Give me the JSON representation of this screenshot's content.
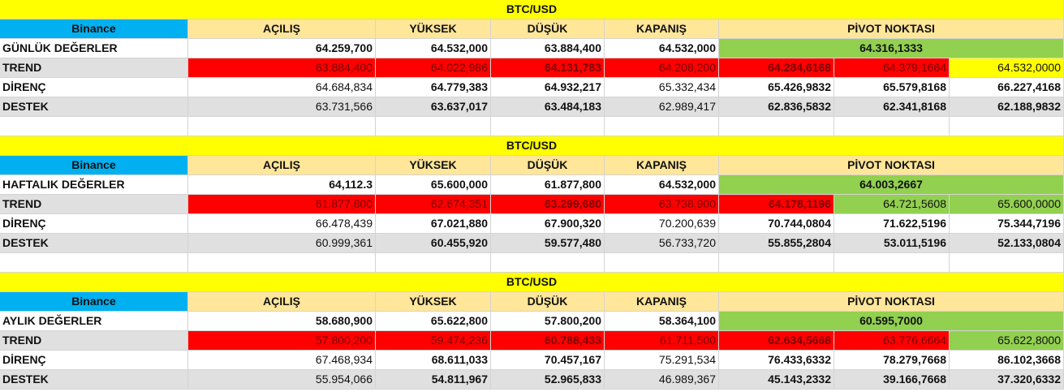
{
  "blocks": [
    {
      "title": "BTC/USD",
      "header": {
        "source": "Binance",
        "columns": [
          "AÇILIŞ",
          "YÜKSEK",
          "DÜŞÜK",
          "KAPANIŞ"
        ],
        "pivot": "PİVOT NOKTASI"
      },
      "summary": {
        "label": "GÜNLÜK DEĞERLER",
        "cells": [
          "64.259,700",
          "64.532,000",
          "63.884,400",
          "64.532,000"
        ],
        "pivot": "64.316,1333"
      },
      "trend": {
        "label": "TREND",
        "cells": [
          "63.884,400",
          "64.022,986",
          "64.131,783",
          "64.208,200",
          "64.284,6168",
          "64.379,1664",
          "64.532,0000"
        ],
        "fills": [
          "#ff0000",
          "#ff0000",
          "#ff0000",
          "#ff0000",
          "#ff0000",
          "#ff0000",
          "#ffff00"
        ]
      },
      "resistance": {
        "label": "DİRENÇ",
        "cells": [
          "64.684,834",
          "64.779,383",
          "64.932,217",
          "65.332,434",
          "65.426,9832",
          "65.579,8168",
          "66.227,4168"
        ]
      },
      "support": {
        "label": "DESTEK",
        "cells": [
          "63.731,566",
          "63.637,017",
          "63.484,183",
          "62.989,417",
          "62.836,5832",
          "62.341,8168",
          "62.188,9832"
        ]
      }
    },
    {
      "title": "BTC/USD",
      "header": {
        "source": "Binance",
        "columns": [
          "AÇILIŞ",
          "YÜKSEK",
          "DÜŞÜK",
          "KAPANIŞ"
        ],
        "pivot": "PİVOT NOKTASI"
      },
      "summary": {
        "label": "HAFTALIK DEĞERLER",
        "cells": [
          "64,112.3",
          "65.600,000",
          "61.877,800",
          "64.532,000"
        ],
        "pivot": "64.003,2667"
      },
      "trend": {
        "label": "TREND",
        "cells": [
          "61.877,800",
          "62.674,351",
          "63.299,680",
          "63.738,900",
          "64.178,1196",
          "64.721,5608",
          "65.600,0000"
        ],
        "fills": [
          "#ff0000",
          "#ff0000",
          "#ff0000",
          "#ff0000",
          "#ff0000",
          "#92d050",
          "#92d050"
        ]
      },
      "resistance": {
        "label": "DİRENÇ",
        "cells": [
          "66.478,439",
          "67.021,880",
          "67.900,320",
          "70.200,639",
          "70.744,0804",
          "71.622,5196",
          "75.344,7196"
        ]
      },
      "support": {
        "label": "DESTEK",
        "cells": [
          "60.999,361",
          "60.455,920",
          "59.577,480",
          "56.733,720",
          "55.855,2804",
          "53.011,5196",
          "52.133,0804"
        ]
      }
    },
    {
      "title": "BTC/USD",
      "header": {
        "source": "Binance",
        "columns": [
          "AÇILIŞ",
          "YÜKSEK",
          "DÜŞÜK",
          "KAPANIŞ"
        ],
        "pivot": "PİVOT NOKTASI"
      },
      "summary": {
        "label": "AYLIK DEĞERLER",
        "cells": [
          "58.680,900",
          "65.622,800",
          "57.800,200",
          "58.364,100"
        ],
        "pivot": "60.595,7000"
      },
      "trend": {
        "label": "TREND",
        "cells": [
          "57.800,200",
          "59.474,236",
          "60.788,433",
          "61.711,500",
          "62.634,5668",
          "63.776,6664",
          "65.622,8000"
        ],
        "fills": [
          "#ff0000",
          "#ff0000",
          "#ff0000",
          "#ff0000",
          "#ff0000",
          "#ff0000",
          "#92d050"
        ]
      },
      "resistance": {
        "label": "DİRENÇ",
        "cells": [
          "67.468,934",
          "68.611,033",
          "70.457,167",
          "75.291,534",
          "76.433,6332",
          "78.279,7668",
          "86.102,3668"
        ]
      },
      "support": {
        "label": "DESTEK",
        "cells": [
          "55.954,066",
          "54.811,967",
          "52.965,833",
          "46.989,367",
          "45.143,2332",
          "39.166,7668",
          "37.320,6332"
        ]
      }
    }
  ]
}
